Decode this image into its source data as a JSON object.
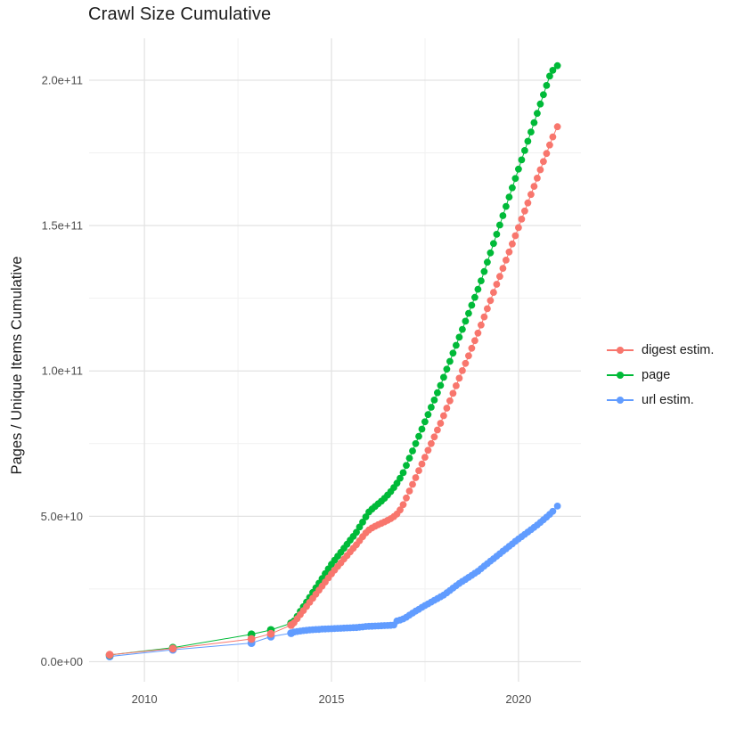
{
  "chart_data": {
    "type": "line",
    "title": "Crawl Size Cumulative",
    "xlabel": "",
    "ylabel": "Pages / Unique Items Cumulative",
    "value_unit": "1e9",
    "grid": true,
    "legend_position": "right",
    "x_domain": [
      2008.52,
      2021.67
    ],
    "y_domain_e9": [
      -6.9,
      214.4
    ],
    "x_ticks": [
      {
        "year": 2010,
        "label": "2010"
      },
      {
        "year": 2015,
        "label": "2015"
      },
      {
        "year": 2020,
        "label": "2020"
      }
    ],
    "x_minor_years": [
      2012.5,
      2017.5
    ],
    "y_ticks": [
      {
        "value": 0,
        "label": "0.0e+00"
      },
      {
        "value": 50,
        "label": "5.0e+10"
      },
      {
        "value": 100,
        "label": "1.0e+11"
      },
      {
        "value": 150,
        "label": "1.5e+11"
      },
      {
        "value": 200,
        "label": "2.0e+11"
      }
    ],
    "y_minor_values": [
      25,
      75,
      125,
      175
    ],
    "series": [
      {
        "id": "digest",
        "label": "digest estim.",
        "color": "#F8766D",
        "early_points": [
          [
            2009.07,
            2.4
          ],
          [
            2010.76,
            4.5
          ],
          [
            2012.86,
            7.8
          ],
          [
            2013.38,
            9.6
          ],
          [
            2013.92,
            12.6
          ]
        ],
        "monthly_start": 2014.0,
        "monthly_step_years": 0.08333,
        "monthly_values": [
          13.4,
          14.8,
          16.2,
          17.6,
          19.0,
          20.4,
          21.8,
          23.2,
          24.6,
          26.0,
          27.4,
          28.8,
          30.2,
          31.5,
          32.8,
          34.0,
          35.3,
          36.5,
          37.8,
          39.0,
          40.2,
          41.6,
          43.0,
          44.3,
          45.3,
          46.0,
          46.6,
          47.1,
          47.6,
          48.1,
          48.6,
          49.2,
          49.9,
          50.8,
          52.2,
          54.0,
          56.3,
          58.7,
          61.0,
          63.3,
          65.7,
          68.0,
          70.3,
          72.7,
          75.0,
          77.3,
          79.7,
          82.0,
          84.6,
          87.2,
          89.7,
          92.3,
          94.9,
          97.5,
          100.1,
          102.6,
          105.2,
          107.8,
          110.4,
          113.0,
          115.8,
          118.6,
          121.4,
          124.2,
          127.0,
          129.8,
          132.5,
          135.3,
          138.1,
          140.9,
          143.7,
          146.5,
          149.3,
          152.2,
          155.0,
          157.8,
          160.7,
          163.5,
          166.3,
          169.2,
          172.0,
          174.8,
          177.7,
          180.5
        ],
        "final_point": [
          2021.04,
          184.0
        ]
      },
      {
        "id": "page",
        "label": "page",
        "color": "#00BA38",
        "early_points": [
          [
            2009.07,
            2.3
          ],
          [
            2010.76,
            4.8
          ],
          [
            2012.86,
            9.4
          ],
          [
            2013.38,
            10.9
          ],
          [
            2013.92,
            13.2
          ]
        ],
        "monthly_start": 2014.0,
        "monthly_step_years": 0.08333,
        "monthly_values": [
          14.0,
          15.6,
          17.3,
          18.9,
          20.5,
          22.1,
          23.8,
          25.4,
          27.0,
          28.6,
          30.3,
          31.9,
          33.5,
          34.9,
          36.3,
          37.6,
          39.0,
          40.4,
          41.8,
          43.1,
          44.5,
          46.3,
          48.0,
          49.8,
          51.5,
          52.5,
          53.4,
          54.3,
          55.2,
          56.2,
          57.3,
          58.5,
          59.9,
          61.4,
          63.1,
          65.0,
          67.5,
          70.0,
          72.5,
          75.0,
          77.5,
          80.0,
          82.5,
          85.0,
          87.5,
          90.0,
          92.5,
          95.0,
          97.8,
          100.6,
          103.3,
          106.1,
          108.8,
          111.6,
          114.3,
          117.1,
          119.8,
          122.6,
          125.3,
          128.1,
          131.0,
          134.2,
          137.4,
          140.6,
          143.8,
          147.0,
          150.2,
          153.4,
          156.6,
          159.8,
          163.0,
          166.2,
          169.4,
          172.6,
          175.8,
          179.0,
          182.2,
          185.4,
          188.6,
          191.8,
          195.0,
          198.2,
          201.4,
          203.4
        ],
        "final_point": [
          2021.04,
          205.0
        ]
      },
      {
        "id": "url",
        "label": "url estim.",
        "color": "#619CFF",
        "early_points": [
          [
            2009.07,
            1.8
          ],
          [
            2010.76,
            4.1
          ],
          [
            2012.86,
            6.4
          ],
          [
            2013.38,
            8.6
          ],
          [
            2013.92,
            9.8
          ]
        ],
        "monthly_start": 2014.0,
        "monthly_step_years": 0.08333,
        "monthly_values": [
          10.2,
          10.4,
          10.55,
          10.7,
          10.8,
          10.9,
          11.0,
          11.05,
          11.1,
          11.2,
          11.25,
          11.3,
          11.35,
          11.4,
          11.45,
          11.5,
          11.55,
          11.6,
          11.65,
          11.7,
          11.75,
          11.85,
          11.95,
          12.1,
          12.15,
          12.2,
          12.25,
          12.3,
          12.35,
          12.4,
          12.45,
          12.5,
          12.6,
          14.0,
          14.3,
          14.7,
          15.3,
          16.0,
          16.7,
          17.4,
          18.0,
          18.7,
          19.3,
          19.9,
          20.5,
          21.1,
          21.7,
          22.3,
          22.9,
          23.7,
          24.5,
          25.3,
          26.1,
          26.9,
          27.6,
          28.3,
          29.0,
          29.7,
          30.4,
          31.1,
          32.0,
          32.9,
          33.7,
          34.6,
          35.4,
          36.3,
          37.1,
          38.0,
          38.8,
          39.7,
          40.5,
          41.4,
          42.2,
          43.0,
          43.8,
          44.6,
          45.4,
          46.2,
          47.0,
          47.9,
          48.8,
          49.7,
          50.7,
          51.7
        ],
        "final_point": [
          2021.04,
          53.5
        ]
      }
    ]
  },
  "style_colors": {
    "grid_major": "#e3e3e3",
    "grid_minor": "#f1f1f1",
    "axis_text": "#4d4d4d",
    "title_text": "#1b1b1b"
  }
}
